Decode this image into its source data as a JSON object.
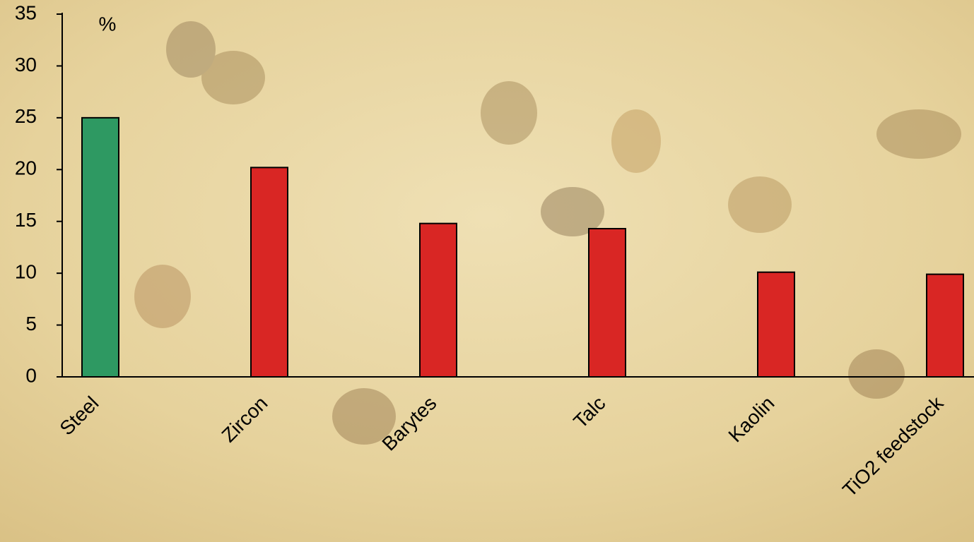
{
  "chart_data": {
    "type": "bar",
    "y_label": "%",
    "categories": [
      "Steel",
      "Zircon",
      "Barytes",
      "Talc",
      "Kaolin",
      "TiO2 feedstock"
    ],
    "values": [
      25,
      20.2,
      14.8,
      14.3,
      10.1,
      9.9
    ],
    "colors": [
      "#2e9962",
      "#d92624",
      "#d92624",
      "#d92624",
      "#d92624",
      "#d92624"
    ],
    "ylim": [
      0,
      35
    ],
    "yticks": [
      0,
      5,
      10,
      15,
      20,
      25,
      30,
      35
    ],
    "grid": false
  }
}
